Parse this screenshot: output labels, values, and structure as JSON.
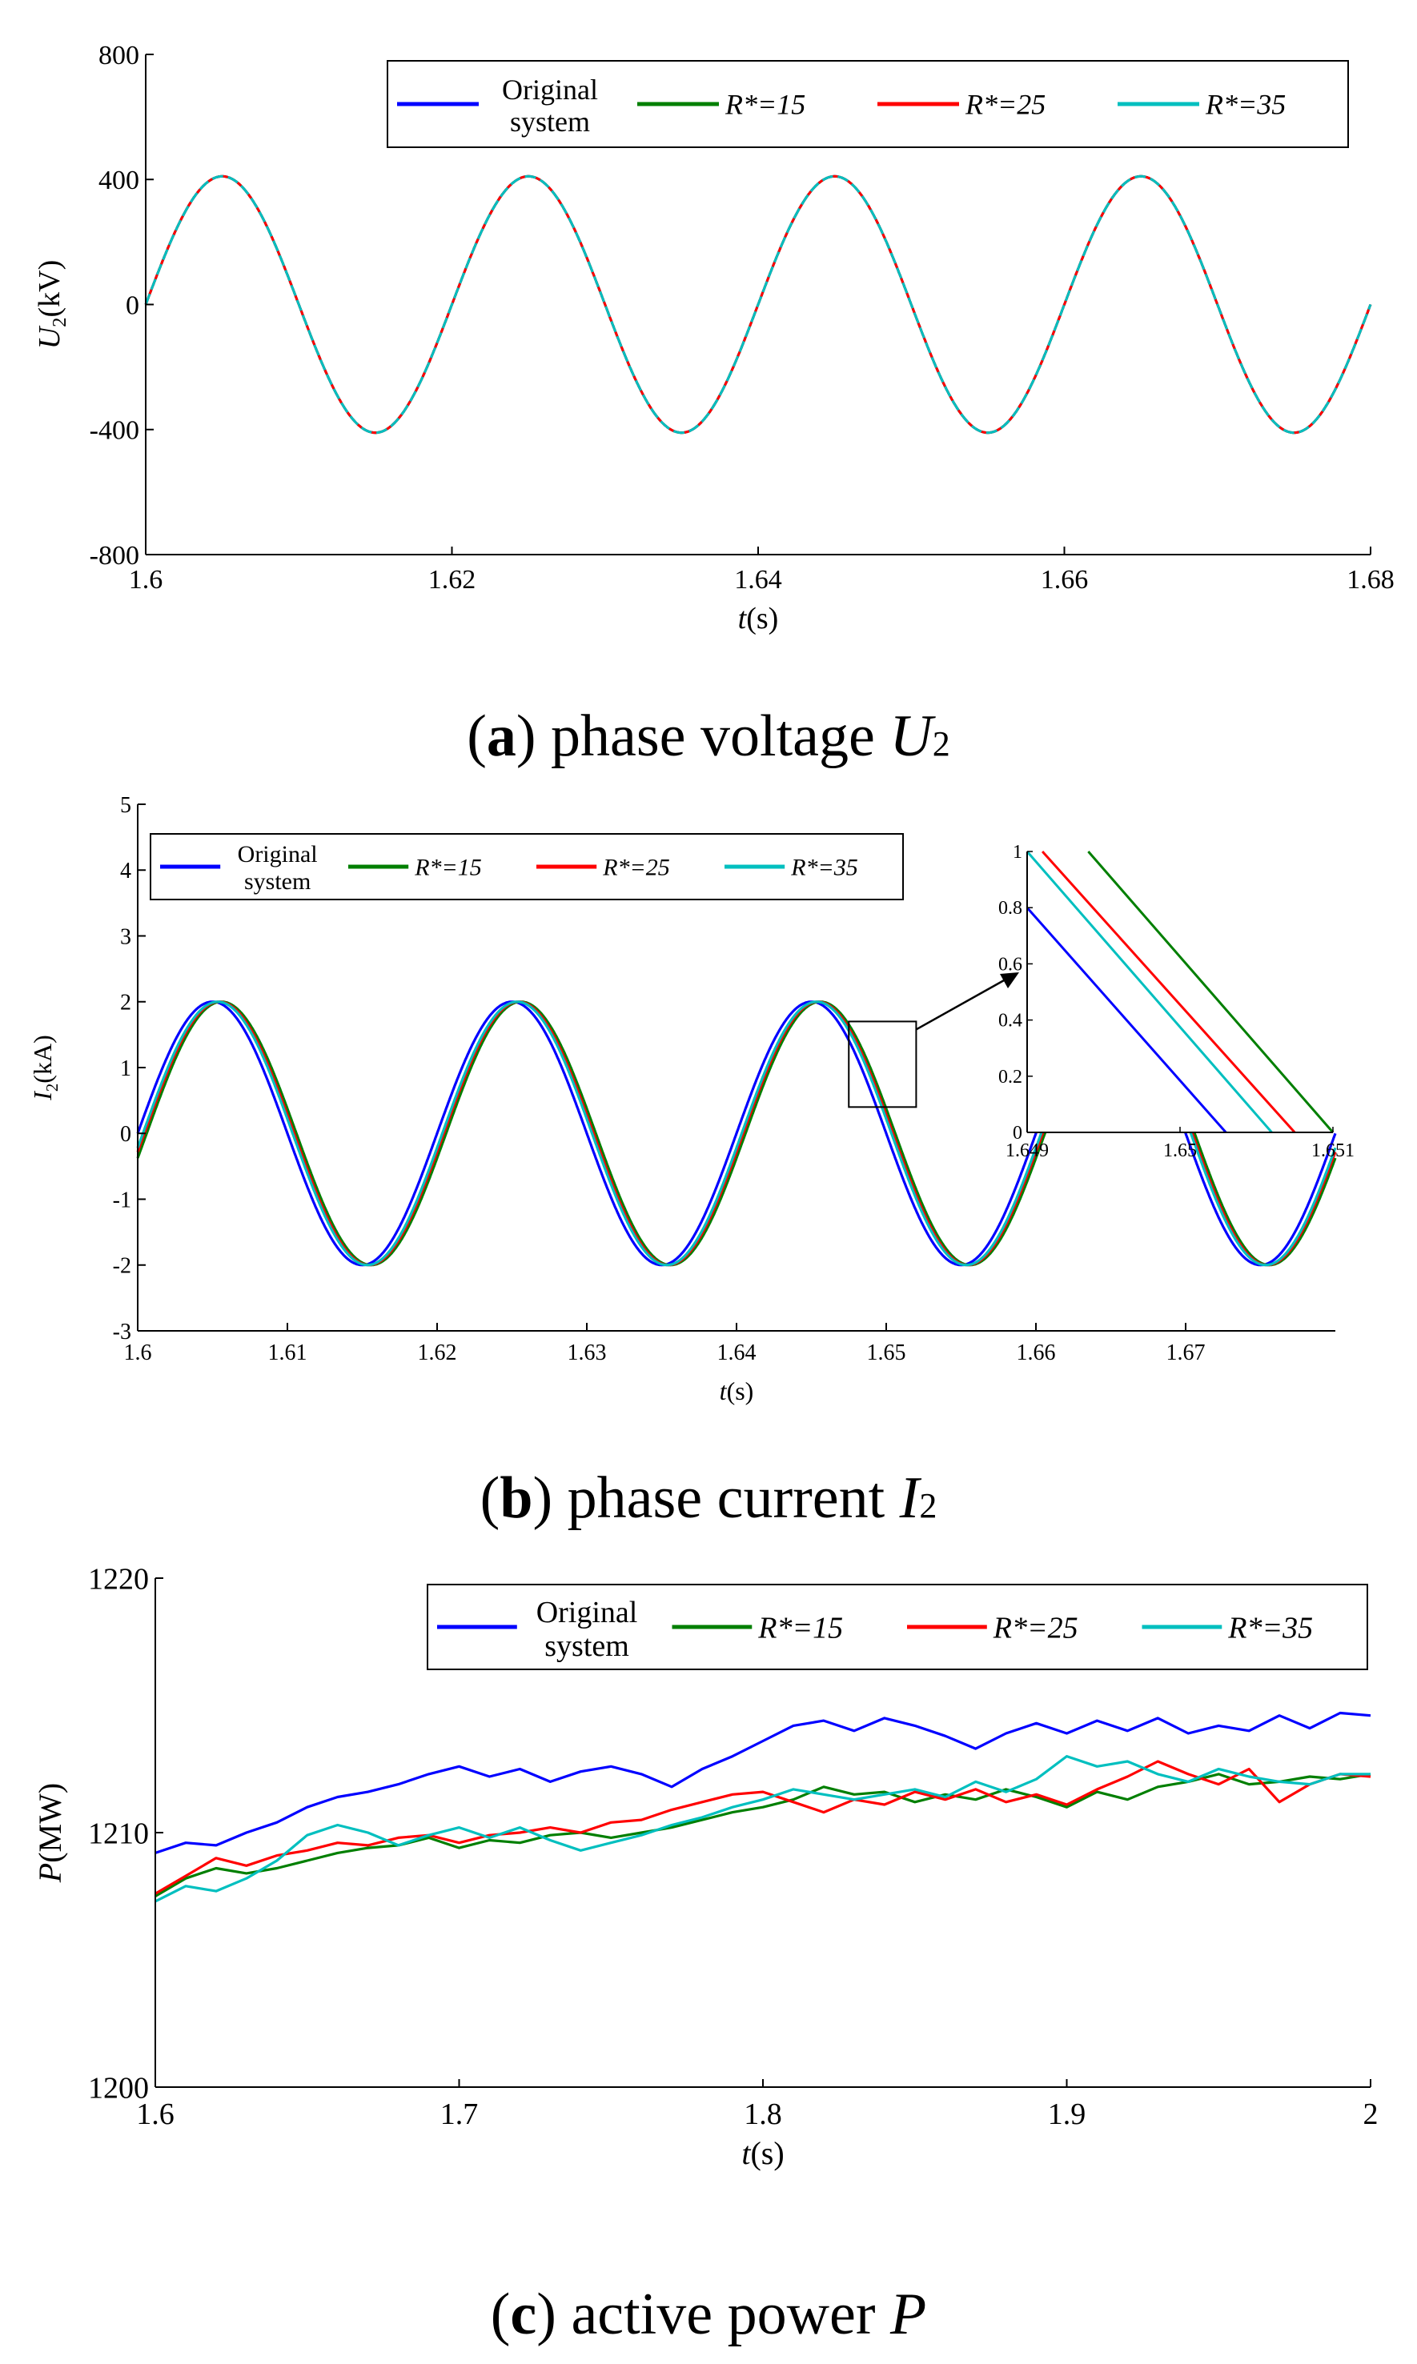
{
  "chart_data": [
    {
      "id": "a",
      "type": "line",
      "caption": {
        "letter": "a",
        "text": "phase voltage",
        "symbol": "U",
        "sub": "2"
      },
      "ylabel": {
        "sym": "U",
        "sub": "2",
        "unit": "(kV)"
      },
      "xlabel": {
        "sym": "t",
        "unit": "(s)"
      },
      "xlim": [
        1.6,
        1.68
      ],
      "ylim": [
        -800,
        800
      ],
      "xticks": [
        "1.6",
        "1.62",
        "1.64",
        "1.66",
        "1.68"
      ],
      "yticks": [
        "800",
        "400",
        "0",
        "-400",
        "-800"
      ],
      "xtick_values": [
        1.6,
        1.62,
        1.64,
        1.66,
        1.68
      ],
      "ytick_values": [
        800,
        400,
        0,
        -400,
        -800
      ],
      "grid": false,
      "legend_position": "top-right",
      "legend_entries": [
        {
          "label_lines": [
            "Original",
            "system"
          ]
        },
        {
          "label_lines": [
            "R*=15"
          ]
        },
        {
          "label_lines": [
            "R*=25"
          ]
        },
        {
          "label_lines": [
            "R*=35"
          ]
        }
      ],
      "series": [
        {
          "name": "Original system",
          "color": "#0000ff",
          "amplitude": 410,
          "frequency_hz": 50,
          "phase_shift_s": 0
        },
        {
          "name": "R*=15",
          "color": "#007f00",
          "amplitude": 410,
          "frequency_hz": 50,
          "phase_shift_s": 0
        },
        {
          "name": "R*=25",
          "color": "#ff0000",
          "amplitude": 410,
          "frequency_hz": 50,
          "phase_shift_s": 0
        },
        {
          "name": "R*=35",
          "color": "#00bfbf",
          "amplitude": 410,
          "frequency_hz": 50,
          "phase_shift_s": 0
        }
      ]
    },
    {
      "id": "b",
      "type": "line",
      "caption": {
        "letter": "b",
        "text": "phase current",
        "symbol": "I",
        "sub": "2"
      },
      "ylabel": {
        "sym": "I",
        "sub": "2",
        "unit": "(kA)"
      },
      "xlabel": {
        "sym": "t",
        "unit": "(s)"
      },
      "xlim": [
        1.6,
        1.68
      ],
      "ylim": [
        -3,
        5
      ],
      "xticks": [
        "1.6",
        "1.61",
        "1.62",
        "1.63",
        "1.64",
        "1.65",
        "1.66",
        "1.67"
      ],
      "yticks": [
        "5",
        "4",
        "3",
        "2",
        "1",
        "0",
        "-1",
        "-2",
        "-3"
      ],
      "xtick_values": [
        1.6,
        1.61,
        1.62,
        1.63,
        1.64,
        1.65,
        1.66,
        1.67
      ],
      "ytick_values": [
        5,
        4,
        3,
        2,
        1,
        0,
        -1,
        -2,
        -3
      ],
      "grid": false,
      "legend_position": "top-left",
      "legend_entries": [
        {
          "label_lines": [
            "Original",
            "system"
          ]
        },
        {
          "label_lines": [
            "R*=15"
          ]
        },
        {
          "label_lines": [
            "R*=25"
          ]
        },
        {
          "label_lines": [
            "R*=35"
          ]
        }
      ],
      "series": [
        {
          "name": "Original system",
          "color": "#0000ff",
          "amplitude": 2,
          "frequency_hz": 50,
          "phase_shift_s": 0
        },
        {
          "name": "R*=15",
          "color": "#007f00",
          "amplitude": 2,
          "frequency_hz": 50,
          "phase_shift_s": 0.0006
        },
        {
          "name": "R*=25",
          "color": "#ff0000",
          "amplitude": 2,
          "frequency_hz": 50,
          "phase_shift_s": 0.00045
        },
        {
          "name": "R*=35",
          "color": "#00bfbf",
          "amplitude": 2,
          "frequency_hz": 50,
          "phase_shift_s": 0.00035
        }
      ],
      "inset": {
        "xlim": [
          1.649,
          1.651
        ],
        "ylim": [
          0,
          1
        ],
        "xticks": [
          "1.649",
          "1.65",
          "1.651"
        ],
        "xtick_values": [
          1.649,
          1.65,
          1.651
        ],
        "yticks": [
          "1",
          "0.8",
          "0.6",
          "0.4",
          "0.2",
          "0"
        ],
        "ytick_values": [
          1,
          0.8,
          0.6,
          0.4,
          0.2,
          0
        ],
        "lines": [
          {
            "name": "Original system",
            "color": "#0000ff",
            "x0": 1.649,
            "y0": 0.8,
            "x1": 1.6503,
            "y1": 0
          },
          {
            "name": "R*=15",
            "color": "#007f00",
            "x0": 1.6494,
            "y0": 1.0,
            "x1": 1.651,
            "y1": 0
          },
          {
            "name": "R*=25",
            "color": "#ff0000",
            "x0": 1.6491,
            "y0": 1.0,
            "x1": 1.65075,
            "y1": 0
          },
          {
            "name": "R*=35",
            "color": "#00bfbf",
            "x0": 1.649,
            "y0": 1.0,
            "x1": 1.6506,
            "y1": 0
          }
        ],
        "zoom_box": {
          "x": [
            1.6475,
            1.652
          ],
          "y": [
            0.4,
            1.7
          ]
        }
      }
    },
    {
      "id": "c",
      "type": "line",
      "caption": {
        "letter": "c",
        "text": "active power",
        "symbol": "P",
        "sub": ""
      },
      "ylabel": {
        "sym": "P",
        "sub": "",
        "unit": "(MW)"
      },
      "xlabel": {
        "sym": "t",
        "unit": "(s)"
      },
      "xlim": [
        1.6,
        2.0
      ],
      "ylim": [
        1200,
        1220
      ],
      "xticks": [
        "1.6",
        "1.7",
        "1.8",
        "1.9",
        "2"
      ],
      "yticks": [
        "1220",
        "1210",
        "1200"
      ],
      "xtick_values": [
        1.6,
        1.7,
        1.8,
        1.9,
        2.0
      ],
      "ytick_values": [
        1220,
        1210,
        1200
      ],
      "grid": false,
      "legend_position": "top-right",
      "legend_entries": [
        {
          "label_lines": [
            "Original",
            "system"
          ]
        },
        {
          "label_lines": [
            "R*=15"
          ]
        },
        {
          "label_lines": [
            "R*=25"
          ]
        },
        {
          "label_lines": [
            "R*=35"
          ]
        }
      ],
      "series": [
        {
          "name": "Original system",
          "color": "#0000ff",
          "x": [
            1.6,
            1.61,
            1.62,
            1.63,
            1.64,
            1.65,
            1.66,
            1.67,
            1.68,
            1.69,
            1.7,
            1.71,
            1.72,
            1.73,
            1.74,
            1.75,
            1.76,
            1.77,
            1.78,
            1.79,
            1.8,
            1.81,
            1.82,
            1.83,
            1.84,
            1.85,
            1.86,
            1.87,
            1.88,
            1.89,
            1.9,
            1.91,
            1.92,
            1.93,
            1.94,
            1.95,
            1.96,
            1.97,
            1.98,
            1.99,
            2.0
          ],
          "y": [
            1209.2,
            1209.6,
            1209.5,
            1210.0,
            1210.4,
            1211.0,
            1211.4,
            1211.6,
            1211.9,
            1212.3,
            1212.6,
            1212.2,
            1212.5,
            1212.0,
            1212.4,
            1212.6,
            1212.3,
            1211.8,
            1212.5,
            1213.0,
            1213.6,
            1214.2,
            1214.4,
            1214.0,
            1214.5,
            1214.2,
            1213.8,
            1213.3,
            1213.9,
            1214.3,
            1213.9,
            1214.4,
            1214.0,
            1214.5,
            1213.9,
            1214.2,
            1214.0,
            1214.6,
            1214.1,
            1214.7,
            1214.6
          ]
        },
        {
          "name": "R*=15",
          "color": "#007f00",
          "x": [
            1.6,
            1.61,
            1.62,
            1.63,
            1.64,
            1.65,
            1.66,
            1.67,
            1.68,
            1.69,
            1.7,
            1.71,
            1.72,
            1.73,
            1.74,
            1.75,
            1.76,
            1.77,
            1.78,
            1.79,
            1.8,
            1.81,
            1.82,
            1.83,
            1.84,
            1.85,
            1.86,
            1.87,
            1.88,
            1.89,
            1.9,
            1.91,
            1.92,
            1.93,
            1.94,
            1.95,
            1.96,
            1.97,
            1.98,
            1.99,
            2.0
          ],
          "y": [
            1207.5,
            1208.2,
            1208.6,
            1208.4,
            1208.6,
            1208.9,
            1209.2,
            1209.4,
            1209.5,
            1209.8,
            1209.4,
            1209.7,
            1209.6,
            1209.9,
            1210.0,
            1209.8,
            1210.0,
            1210.2,
            1210.5,
            1210.8,
            1211.0,
            1211.3,
            1211.8,
            1211.5,
            1211.6,
            1211.2,
            1211.5,
            1211.3,
            1211.7,
            1211.4,
            1211.0,
            1211.6,
            1211.3,
            1211.8,
            1212.0,
            1212.3,
            1211.9,
            1212.0,
            1212.2,
            1212.1,
            1212.3
          ]
        },
        {
          "name": "R*=25",
          "color": "#ff0000",
          "x": [
            1.6,
            1.61,
            1.62,
            1.63,
            1.64,
            1.65,
            1.66,
            1.67,
            1.68,
            1.69,
            1.7,
            1.71,
            1.72,
            1.73,
            1.74,
            1.75,
            1.76,
            1.77,
            1.78,
            1.79,
            1.8,
            1.81,
            1.82,
            1.83,
            1.84,
            1.85,
            1.86,
            1.87,
            1.88,
            1.89,
            1.9,
            1.91,
            1.92,
            1.93,
            1.94,
            1.95,
            1.96,
            1.97,
            1.98,
            1.99,
            2.0
          ],
          "y": [
            1207.6,
            1208.3,
            1209.0,
            1208.7,
            1209.1,
            1209.3,
            1209.6,
            1209.5,
            1209.8,
            1209.9,
            1209.6,
            1209.9,
            1210.0,
            1210.2,
            1210.0,
            1210.4,
            1210.5,
            1210.9,
            1211.2,
            1211.5,
            1211.6,
            1211.2,
            1210.8,
            1211.3,
            1211.1,
            1211.6,
            1211.3,
            1211.7,
            1211.2,
            1211.5,
            1211.1,
            1211.7,
            1212.2,
            1212.8,
            1212.3,
            1211.9,
            1212.5,
            1211.2,
            1211.9,
            1212.3,
            1212.2
          ]
        },
        {
          "name": "R*=35",
          "color": "#00bfbf",
          "x": [
            1.6,
            1.61,
            1.62,
            1.63,
            1.64,
            1.65,
            1.66,
            1.67,
            1.68,
            1.69,
            1.7,
            1.71,
            1.72,
            1.73,
            1.74,
            1.75,
            1.76,
            1.77,
            1.78,
            1.79,
            1.8,
            1.81,
            1.82,
            1.83,
            1.84,
            1.85,
            1.86,
            1.87,
            1.88,
            1.89,
            1.9,
            1.91,
            1.92,
            1.93,
            1.94,
            1.95,
            1.96,
            1.97,
            1.98,
            1.99,
            2.0
          ],
          "y": [
            1207.3,
            1207.9,
            1207.7,
            1208.2,
            1208.9,
            1209.9,
            1210.3,
            1210.0,
            1209.5,
            1209.9,
            1210.2,
            1209.8,
            1210.2,
            1209.7,
            1209.3,
            1209.6,
            1209.9,
            1210.3,
            1210.6,
            1211.0,
            1211.3,
            1211.7,
            1211.5,
            1211.3,
            1211.5,
            1211.7,
            1211.4,
            1212.0,
            1211.6,
            1212.1,
            1213.0,
            1212.6,
            1212.8,
            1212.3,
            1212.0,
            1212.5,
            1212.2,
            1212.0,
            1211.9,
            1212.3,
            1212.3
          ]
        }
      ]
    }
  ]
}
